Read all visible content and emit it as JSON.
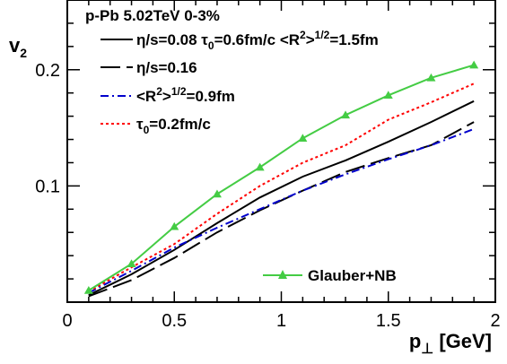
{
  "chart_data": {
    "type": "line",
    "title": "p-Pb 5.02TeV   0-3%",
    "ylabel": "v_2",
    "xlabel": "p_⊥ [GeV]",
    "xlim": [
      0,
      2
    ],
    "ylim": [
      0,
      0.26
    ],
    "x_ticks": [
      "0",
      "0.5",
      "1",
      "1.5",
      "2"
    ],
    "y_ticks": [
      "0.1",
      "0.2"
    ],
    "y_tick_values": [
      0.1,
      0.2
    ],
    "x_tick_values": [
      0,
      0.5,
      1,
      1.5,
      2
    ],
    "grid": false,
    "legend_position": "top-left",
    "series": [
      {
        "name": "η/s=0.08  τ_0=0.6fm/c <R²>^1/2=1.5fm",
        "label_parts": [
          "η/s=0.08  τ",
          "0",
          "=0.6fm/c <R",
          "2",
          ">",
          "1/2",
          "=1.5fm"
        ],
        "color": "#000000",
        "style": "solid",
        "x": [
          0.1,
          0.3,
          0.5,
          0.7,
          0.9,
          1.1,
          1.3,
          1.5,
          1.7,
          1.9
        ],
        "y": [
          0.006,
          0.024,
          0.045,
          0.068,
          0.09,
          0.108,
          0.122,
          0.138,
          0.155,
          0.173
        ]
      },
      {
        "name": "η/s=0.16",
        "label_parts": [
          "η/s=0.16"
        ],
        "color": "#000000",
        "style": "longdash",
        "x": [
          0.1,
          0.3,
          0.5,
          0.7,
          0.9,
          1.1,
          1.3,
          1.5,
          1.7,
          1.9
        ],
        "y": [
          0.005,
          0.019,
          0.038,
          0.06,
          0.079,
          0.096,
          0.112,
          0.124,
          0.135,
          0.155
        ]
      },
      {
        "name": "<R²>^1/2=0.9fm",
        "label_parts": [
          "<R",
          "2",
          ">",
          "1/2",
          "=0.9fm"
        ],
        "color": "#0000cc",
        "style": "dashdot",
        "x": [
          0.1,
          0.3,
          0.5,
          0.7,
          0.9,
          1.1,
          1.3,
          1.5,
          1.7,
          1.9
        ],
        "y": [
          0.008,
          0.027,
          0.047,
          0.064,
          0.08,
          0.096,
          0.11,
          0.123,
          0.135,
          0.149
        ]
      },
      {
        "name": "τ_0=0.2fm/c",
        "label_parts": [
          "τ",
          "0",
          "=0.2fm/c"
        ],
        "color": "#ff0000",
        "style": "dotted",
        "x": [
          0.1,
          0.3,
          0.5,
          0.7,
          0.9,
          1.1,
          1.3,
          1.5,
          1.7,
          1.9
        ],
        "y": [
          0.009,
          0.03,
          0.05,
          0.076,
          0.1,
          0.12,
          0.135,
          0.157,
          0.172,
          0.188
        ]
      },
      {
        "name": "Glauber+NB",
        "label_parts": [
          "Glauber+NB"
        ],
        "color": "#44cc44",
        "style": "solid-triangle",
        "x": [
          0.1,
          0.3,
          0.5,
          0.7,
          0.9,
          1.1,
          1.3,
          1.5,
          1.7,
          1.9
        ],
        "y": [
          0.01,
          0.033,
          0.065,
          0.093,
          0.116,
          0.141,
          0.161,
          0.178,
          0.193,
          0.204
        ]
      }
    ]
  }
}
